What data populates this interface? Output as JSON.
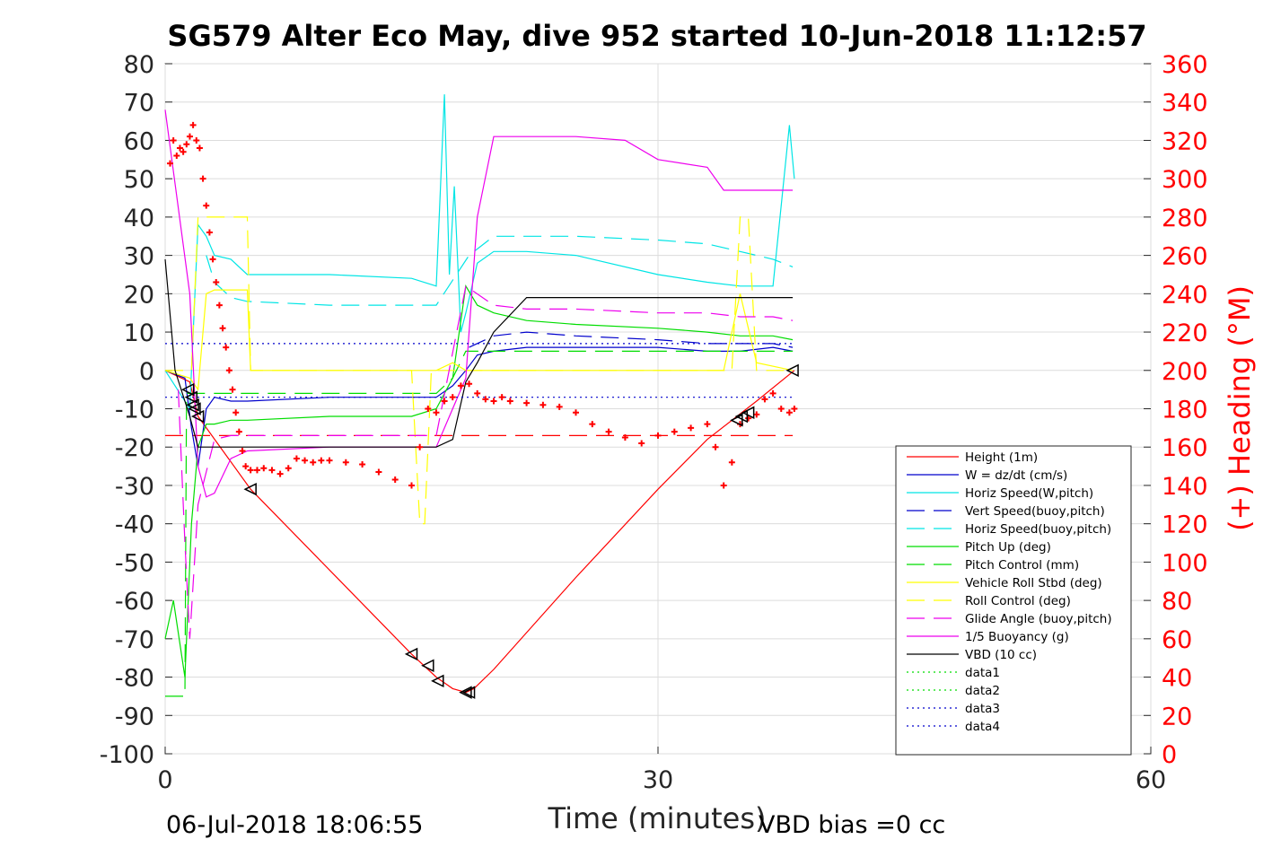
{
  "chart_data": {
    "type": "line",
    "title": "SG579 Alter Eco May, dive 952 started 10-Jun-2018 11:12:57",
    "xlabel": "Time (minutes)",
    "ylabel_right": "(+) Heading (°M)",
    "xlim": [
      0,
      60
    ],
    "ylim": [
      -100,
      80
    ],
    "ylim_right": [
      0,
      360
    ],
    "x_ticks": [
      "0",
      "30",
      "60"
    ],
    "y_ticks": [
      "80",
      "70",
      "60",
      "50",
      "40",
      "30",
      "20",
      "10",
      "0",
      "-10",
      "-20",
      "-30",
      "-40",
      "-50",
      "-60",
      "-70",
      "-80",
      "-90",
      "-100"
    ],
    "y_ticks_right": [
      "360",
      "340",
      "320",
      "300",
      "280",
      "260",
      "240",
      "220",
      "200",
      "180",
      "160",
      "140",
      "120",
      "100",
      "80",
      "60",
      "40",
      "20",
      "0"
    ],
    "grid": true,
    "legend_position": "bottom-right",
    "footer_left": "06-Jul-2018 18:06:55",
    "footer_right": "VBD bias =0 cc",
    "series": [
      {
        "name": "Height (1m)",
        "color": "#ff0000",
        "dash": "solid",
        "x": [
          0,
          1.5,
          2.0,
          5.2,
          15,
          16.5,
          17.5,
          18.3,
          18.8,
          20,
          25,
          30,
          33,
          36,
          38.3
        ],
        "y": [
          0,
          -3,
          -12,
          -31,
          -74,
          -80,
          -83,
          -84,
          -83,
          -78,
          -54,
          -31,
          -18,
          -8,
          0
        ]
      },
      {
        "name": "W = dz/dt (cm/s)",
        "color": "#0000cc",
        "dash": "solid",
        "x": [
          0,
          1.2,
          1.6,
          2.0,
          2.5,
          3,
          4,
          5,
          10,
          15,
          16.5,
          17.5,
          18.3,
          19,
          20,
          22,
          25,
          30,
          33,
          35,
          37,
          38.2
        ],
        "y": [
          0,
          -2,
          -15,
          -25,
          -10,
          -7,
          -8,
          -8,
          -7,
          -7,
          -7,
          -4,
          0,
          4,
          5,
          6,
          6,
          6,
          5,
          5,
          6,
          5
        ]
      },
      {
        "name": "Horiz Speed(W,pitch)",
        "color": "#00e5e5",
        "dash": "solid",
        "x": [
          0,
          1.5,
          2.0,
          2.5,
          3,
          4,
          5,
          10,
          15,
          16.5,
          17.0,
          17.3,
          17.6,
          18.0,
          18.3,
          19,
          20,
          22,
          25,
          30,
          33,
          35,
          37,
          38.0,
          38.3
        ],
        "y": [
          0,
          -10,
          38,
          35,
          30,
          29,
          25,
          25,
          24,
          22,
          72,
          25,
          48,
          10,
          15,
          28,
          31,
          31,
          30,
          25,
          23,
          22,
          22,
          64,
          50
        ]
      },
      {
        "name": "Vert Speed(buoy,pitch)",
        "color": "#0000cc",
        "dash": "long",
        "x": [
          18.5,
          20,
          22,
          25,
          30,
          33,
          35,
          37,
          38.2
        ],
        "y": [
          6,
          9,
          10,
          9,
          8,
          7,
          7,
          7,
          6
        ]
      },
      {
        "name": "Horiz Speed(buoy,pitch)",
        "color": "#00e5e5",
        "dash": "long",
        "x": [
          2.5,
          3,
          4,
          5,
          10,
          15,
          16.5,
          18.5,
          20,
          22,
          25,
          30,
          33,
          35,
          37,
          38.2
        ],
        "y": [
          30,
          23,
          19,
          18,
          17,
          17,
          17,
          30,
          35,
          35,
          35,
          34,
          33,
          31,
          29,
          27
        ]
      },
      {
        "name": "Pitch Up (deg)",
        "color": "#00dd00",
        "dash": "solid",
        "x": [
          0,
          0.5,
          1.2,
          1.6,
          2.0,
          2.5,
          3,
          4,
          5,
          10,
          15,
          16.5,
          17.5,
          18.3,
          19,
          20,
          22,
          25,
          30,
          33,
          35,
          37,
          38.2
        ],
        "y": [
          -70,
          -60,
          -80,
          -40,
          -20,
          -14,
          -14,
          -13,
          -13,
          -12,
          -12,
          -10,
          -2,
          22,
          17,
          15,
          13,
          12,
          11,
          10,
          9,
          9,
          8
        ]
      },
      {
        "name": "Pitch Control (mm)",
        "color": "#00dd00",
        "dash": "long",
        "x": [
          0,
          1.2,
          1.3,
          2.0,
          5,
          10,
          16.5,
          17.5,
          18.3,
          19,
          20,
          25,
          30,
          35,
          38.2
        ],
        "y": [
          -85,
          -85,
          -6,
          -6,
          -6,
          -6,
          -6,
          -2,
          5,
          5,
          5,
          5,
          5,
          5,
          5
        ]
      },
      {
        "name": "Vehicle Roll Stbd (deg)",
        "color": "#ffff00",
        "dash": "solid",
        "x": [
          0,
          1.5,
          2.0,
          2.5,
          3,
          4,
          5,
          5.2,
          10,
          15,
          16.5,
          17.5,
          18.3,
          20,
          25,
          30,
          34,
          35,
          36,
          38.2
        ],
        "y": [
          0,
          -2,
          -5,
          20,
          21,
          21,
          21,
          0,
          0,
          0,
          0,
          2,
          0,
          0,
          0,
          0,
          0,
          20,
          2,
          0
        ]
      },
      {
        "name": "Roll Control (deg)",
        "color": "#ffff00",
        "dash": "long",
        "x": [
          0,
          1.2,
          1.6,
          2.0,
          2.5,
          5.0,
          5.2,
          10,
          15,
          15.5,
          15.8,
          16.2,
          16.5,
          18.3,
          20,
          30,
          34.5,
          35,
          35.5,
          36,
          38.2
        ],
        "y": [
          0,
          0,
          0,
          40,
          40,
          40,
          0,
          0,
          0,
          -40,
          -40,
          0,
          0,
          0,
          0,
          0,
          0,
          40,
          40,
          0,
          0
        ]
      },
      {
        "name": "Glide Angle (buoy,pitch)",
        "color": "#ee00ee",
        "dash": "long",
        "x": [
          0.8,
          1.2,
          1.5,
          2.0,
          3,
          4,
          5,
          10,
          15,
          16.5,
          18.3,
          20,
          22,
          25,
          30,
          33,
          35,
          37,
          38.2
        ],
        "y": [
          -5,
          -45,
          -70,
          -35,
          -18,
          -17,
          -17,
          -17,
          -17,
          -17,
          22,
          17,
          16,
          16,
          15,
          15,
          14,
          14,
          13
        ]
      },
      {
        "name": "1/5 Buoyancy (g)",
        "color": "#ee00ee",
        "dash": "solid",
        "x": [
          0,
          1.5,
          2.0,
          2.5,
          3,
          4,
          5,
          10,
          15,
          16.5,
          18.3,
          19,
          20,
          25,
          28,
          30,
          33,
          34,
          36,
          38.2
        ],
        "y": [
          68,
          20,
          -25,
          -33,
          -32,
          -23,
          -21,
          -20,
          -20,
          -20,
          -2,
          40,
          61,
          61,
          60,
          55,
          53,
          47,
          47,
          47
        ]
      },
      {
        "name": "VBD (10 cc)",
        "color": "#000000",
        "dash": "solid",
        "x": [
          0,
          0.6,
          1.5,
          2.0,
          5,
          10,
          15,
          16.5,
          17.5,
          18.3,
          19,
          20,
          22,
          25,
          30,
          35,
          38.2
        ],
        "y": [
          29,
          0,
          -12,
          -20,
          -20,
          -20,
          -20,
          -20,
          -18,
          -3,
          2,
          10,
          19,
          19,
          19,
          19,
          19
        ]
      },
      {
        "name": "data1",
        "color": "#00dd00",
        "dash": "dot",
        "x": [],
        "y": []
      },
      {
        "name": "data2",
        "color": "#00dd00",
        "dash": "dot",
        "x": [],
        "y": []
      },
      {
        "name": "data3",
        "color": "#0000cc",
        "dash": "dot",
        "x": [
          0,
          38.2
        ],
        "y": [
          7,
          7
        ]
      },
      {
        "name": "data4",
        "color": "#0000cc",
        "dash": "dot",
        "x": [
          0,
          38.2
        ],
        "y": [
          -7,
          -7
        ]
      }
    ],
    "extra_lines": [
      {
        "color": "#ff0000",
        "dash": "long",
        "x": [
          0,
          38.2
        ],
        "y": [
          -17,
          -17
        ]
      }
    ],
    "heading_points": {
      "color": "#ff0000",
      "axis": "right",
      "x": [
        0.3,
        0.5,
        0.7,
        0.9,
        1.1,
        1.3,
        1.5,
        1.7,
        1.9,
        2.1,
        2.3,
        2.5,
        2.7,
        2.9,
        3.1,
        3.3,
        3.5,
        3.7,
        3.9,
        4.1,
        4.3,
        4.5,
        4.7,
        4.9,
        5.2,
        5.6,
        6,
        6.5,
        7,
        7.5,
        8,
        8.5,
        9,
        9.5,
        10,
        11,
        12,
        13,
        14,
        15,
        15.5,
        16,
        16.5,
        17,
        17.5,
        18,
        18.5,
        19,
        19.5,
        20,
        20.5,
        21,
        22,
        23,
        24,
        25,
        26,
        27,
        28,
        29,
        30,
        31,
        32,
        33,
        33.5,
        34,
        34.5,
        35,
        35.5,
        36,
        36.5,
        37,
        37.5,
        38,
        38.3
      ],
      "y": [
        308,
        320,
        312,
        316,
        314,
        318,
        322,
        328,
        320,
        316,
        300,
        286,
        272,
        258,
        246,
        234,
        222,
        212,
        200,
        190,
        178,
        168,
        158,
        150,
        148,
        148,
        149,
        148,
        146,
        149,
        154,
        153,
        152,
        153,
        153,
        152,
        151,
        147,
        143,
        140,
        160,
        180,
        178,
        184,
        186,
        192,
        193,
        188,
        185,
        184,
        186,
        184,
        183,
        182,
        181,
        178,
        172,
        168,
        165,
        162,
        166,
        168,
        170,
        172,
        160,
        140,
        152,
        172,
        175,
        177,
        185,
        188,
        180,
        178,
        180
      ]
    },
    "markers": {
      "color": "#000000",
      "x": [
        1.4,
        1.6,
        1.7,
        1.8,
        2.0,
        5.2,
        15.0,
        16.0,
        16.6,
        18.3,
        18.5,
        34.8,
        35.1,
        35.5,
        38.2
      ],
      "y": [
        -5,
        -7,
        -9,
        -10,
        -12,
        -31,
        -74,
        -77,
        -81,
        -84,
        -84,
        -13,
        -12,
        -11,
        0
      ]
    }
  }
}
